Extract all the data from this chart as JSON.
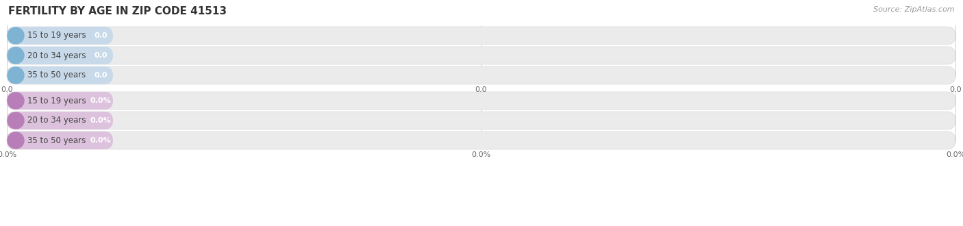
{
  "title": "FERTILITY BY AGE IN ZIP CODE 41513",
  "source": "Source: ZipAtlas.com",
  "top_labels": [
    "15 to 19 years",
    "20 to 34 years",
    "35 to 50 years"
  ],
  "bottom_labels": [
    "15 to 19 years",
    "20 to 34 years",
    "35 to 50 years"
  ],
  "top_value_labels": [
    "0.0",
    "0.0",
    "0.0"
  ],
  "bottom_value_labels": [
    "0.0%",
    "0.0%",
    "0.0%"
  ],
  "top_bar_color": "#aac4de",
  "top_circle_color": "#7fb3d3",
  "top_pill_bg": "#c8daea",
  "bottom_bar_color": "#d4aed4",
  "bottom_circle_color": "#b87eb8",
  "bottom_pill_bg": "#dcc2dc",
  "bar_bg_color": "#ebebeb",
  "bar_bg_border": "#e0e0e0",
  "top_axis_ticks": [
    "0.0",
    "0.0",
    "0.0"
  ],
  "bottom_axis_ticks": [
    "0.0%",
    "0.0%",
    "0.0%"
  ],
  "background_color": "#ffffff",
  "title_fontsize": 11,
  "label_fontsize": 8.5,
  "value_fontsize": 8,
  "tick_fontsize": 8,
  "source_fontsize": 8
}
